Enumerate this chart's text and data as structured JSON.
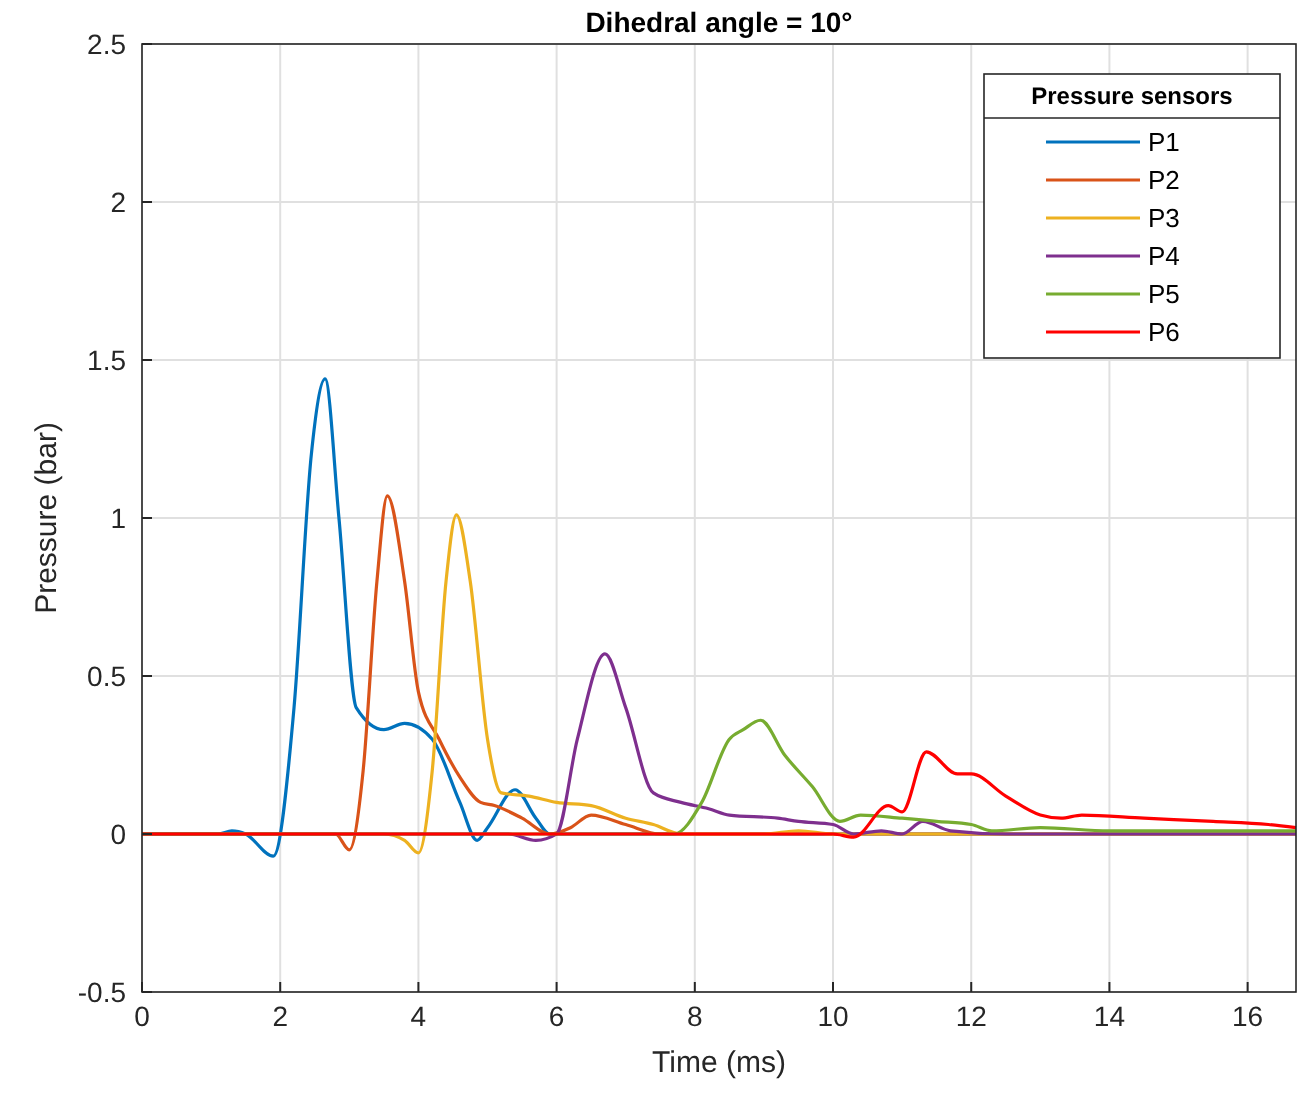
{
  "chart_data": {
    "type": "line",
    "title": "Dihedral angle = 10°",
    "xlabel": "Time (ms)",
    "ylabel": "Pressure (bar)",
    "legend_title": "Pressure sensors",
    "legend": "top right",
    "grid": true,
    "line_style": "solid",
    "xlim": [
      0,
      16.7
    ],
    "xticks": [
      0,
      2,
      4,
      6,
      8,
      10,
      12,
      14,
      16
    ],
    "ylim": [
      -0.5,
      2.5
    ],
    "yticks": [
      -0.5,
      0,
      0.5,
      1,
      1.5,
      2,
      2.5
    ],
    "series": [
      {
        "name": "P1",
        "color": "#0072bd",
        "x": [
          0,
          1.1,
          1.3,
          1.5,
          1.9,
          2.2,
          2.45,
          2.65,
          2.85,
          3.1,
          3.5,
          3.8,
          4.2,
          4.6,
          4.85,
          5.0,
          5.4,
          5.7,
          5.9,
          6.5,
          16.7
        ],
        "values": [
          0,
          0,
          0.01,
          0,
          -0.07,
          0.4,
          1.2,
          1.44,
          1.0,
          0.4,
          0.33,
          0.35,
          0.3,
          0.1,
          -0.02,
          0.02,
          0.14,
          0.05,
          0,
          0,
          0
        ]
      },
      {
        "name": "P2",
        "color": "#d95319",
        "x": [
          0,
          2.5,
          2.8,
          3.0,
          3.2,
          3.4,
          3.55,
          3.8,
          4.0,
          4.3,
          4.6,
          4.9,
          5.1,
          5.5,
          5.9,
          6.2,
          6.5,
          7.0,
          7.5,
          16.7
        ],
        "values": [
          0,
          0,
          0,
          -0.05,
          0.2,
          0.8,
          1.07,
          0.8,
          0.45,
          0.3,
          0.18,
          0.1,
          0.09,
          0.05,
          0,
          0.02,
          0.06,
          0.03,
          0,
          0
        ]
      },
      {
        "name": "P3",
        "color": "#edb120",
        "x": [
          0,
          3.5,
          3.8,
          4.0,
          4.2,
          4.4,
          4.55,
          4.75,
          5.0,
          5.2,
          5.6,
          6.0,
          6.5,
          7.0,
          7.4,
          7.8,
          9.0,
          9.5,
          10.0,
          16.7
        ],
        "values": [
          0,
          0,
          -0.02,
          -0.06,
          0.2,
          0.8,
          1.01,
          0.8,
          0.3,
          0.13,
          0.12,
          0.1,
          0.09,
          0.05,
          0.03,
          0,
          0,
          0.01,
          0,
          0
        ]
      },
      {
        "name": "P4",
        "color": "#7e2f8e",
        "x": [
          0,
          5.3,
          5.7,
          6.0,
          6.3,
          6.7,
          7.0,
          7.4,
          7.8,
          8.2,
          8.5,
          9.2,
          9.5,
          10.0,
          10.3,
          10.7,
          11.0,
          11.3,
          11.7,
          12.5,
          16.7
        ],
        "values": [
          0,
          0,
          -0.02,
          0,
          0.3,
          0.57,
          0.4,
          0.13,
          0.1,
          0.08,
          0.06,
          0.05,
          0.04,
          0.03,
          0,
          0.01,
          0,
          0.04,
          0.01,
          0,
          0
        ]
      },
      {
        "name": "P5",
        "color": "#77ac30",
        "x": [
          0,
          7.2,
          7.7,
          8.1,
          8.5,
          8.7,
          8.95,
          9.3,
          9.7,
          10.1,
          10.4,
          11.0,
          11.5,
          12.0,
          12.3,
          13.0,
          14.0,
          16.7
        ],
        "values": [
          0,
          0,
          0,
          0.1,
          0.3,
          0.33,
          0.36,
          0.25,
          0.15,
          0.04,
          0.06,
          0.05,
          0.04,
          0.03,
          0.01,
          0.02,
          0.01,
          0.01
        ]
      },
      {
        "name": "P6",
        "color": "#ff0000",
        "x": [
          0,
          10.0,
          10.3,
          10.8,
          11.0,
          11.35,
          11.8,
          12.0,
          12.5,
          13.0,
          13.3,
          13.6,
          14.5,
          15.5,
          16.3,
          16.7
        ],
        "values": [
          0,
          0,
          -0.01,
          0.09,
          0.07,
          0.26,
          0.19,
          0.19,
          0.12,
          0.06,
          0.05,
          0.06,
          0.05,
          0.04,
          0.03,
          0.02
        ]
      }
    ]
  }
}
